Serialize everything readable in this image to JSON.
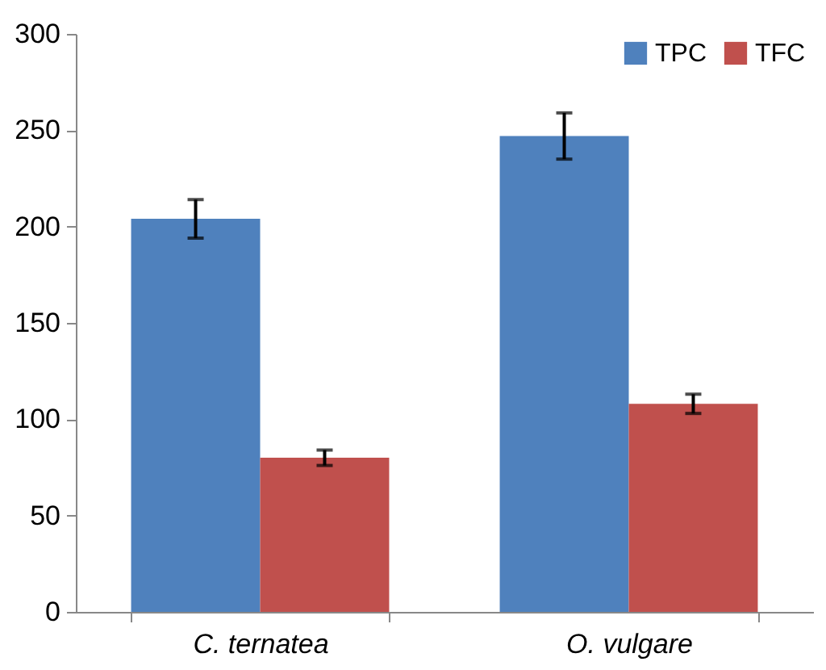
{
  "chart_data": {
    "type": "bar",
    "categories": [
      "C. ternatea",
      "O. vulgare"
    ],
    "series": [
      {
        "name": "TPC",
        "color": "#4f81bd",
        "values": [
          204,
          247
        ],
        "errors": [
          10,
          12
        ]
      },
      {
        "name": "TFC",
        "color": "#c0504d",
        "values": [
          80,
          108
        ],
        "errors": [
          4,
          5
        ]
      }
    ],
    "ylim": [
      0,
      300
    ],
    "yticks": [
      0,
      50,
      100,
      150,
      200,
      250,
      300
    ],
    "grid": false,
    "legend": "top right"
  }
}
